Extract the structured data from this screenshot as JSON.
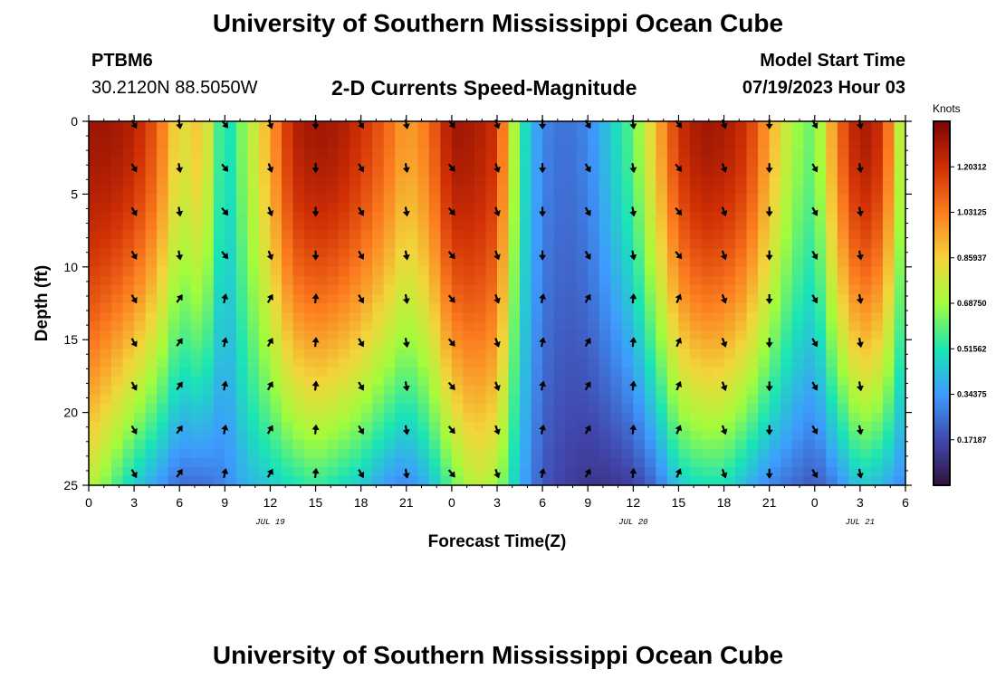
{
  "header": {
    "title": "University of Southern Mississippi Ocean Cube",
    "station_id": "PTBM6",
    "coordinates": "30.2120N  88.5050W",
    "subtitle": "2-D Currents Speed-Magnitude",
    "model_start_label": "Model Start Time",
    "model_start_value": "07/19/2023 Hour 03"
  },
  "footer": {
    "title": "University of Southern Mississippi Ocean Cube"
  },
  "colors": {
    "low": "#30123b",
    "high": "#7a0403",
    "arrow": "#000000"
  },
  "chart_data": {
    "type": "heatmap",
    "title": "2-D Currents Speed-Magnitude",
    "xlabel": "Forecast Time(Z)",
    "ylabel": "Depth (ft)",
    "x_ticks": [
      "0",
      "3",
      "6",
      "9",
      "12",
      "15",
      "18",
      "21",
      "0",
      "3",
      "6",
      "9",
      "12",
      "15",
      "18",
      "21",
      "0",
      "3",
      "6"
    ],
    "x_range_hours": [
      0,
      54
    ],
    "day_labels": [
      {
        "label": "JUL 19",
        "hour": 12
      },
      {
        "label": "JUL 20",
        "hour": 36
      },
      {
        "label": "JUL 21",
        "hour": 51
      }
    ],
    "y_ticks": [
      "0",
      "5",
      "10",
      "15",
      "20",
      "25"
    ],
    "y_range_ft": [
      0,
      25
    ],
    "colorbar": {
      "units": "Knots",
      "range": [
        0.0,
        1.375
      ],
      "tick_values": [
        0.171875,
        0.34375,
        0.515625,
        0.6875,
        0.859375,
        1.03125,
        1.203125
      ],
      "tick_labels": [
        "0.17187",
        "0.34375",
        "0.51562",
        "0.68750",
        "0.85937",
        "1.03125",
        "1.20312"
      ]
    },
    "arrow_rows_depth_ft": [
      0,
      3,
      6,
      9,
      12,
      15,
      18,
      21,
      24
    ],
    "arrow_cols_hour": [
      3,
      6,
      9,
      12,
      15,
      18,
      21,
      24,
      27,
      30,
      33,
      36,
      39,
      42,
      45,
      48,
      51
    ],
    "speed_profile_hours": [
      0,
      1.5,
      3,
      4.5,
      6,
      7.5,
      9,
      10.5,
      12,
      13.5,
      15,
      16.5,
      18,
      19.5,
      21,
      22.5,
      24,
      25.5,
      27,
      28.5,
      30,
      31.5,
      33,
      34.5,
      36,
      37.5,
      39,
      40.5,
      42,
      43.5,
      45,
      46.5,
      48,
      49.5,
      51,
      52.5,
      54
    ],
    "speed_surface_knots": [
      1.3,
      1.3,
      1.25,
      1.1,
      0.8,
      0.9,
      0.45,
      0.7,
      0.95,
      1.25,
      1.3,
      1.28,
      1.2,
      1.1,
      0.95,
      1.05,
      1.3,
      1.28,
      1.2,
      0.55,
      0.3,
      0.25,
      0.3,
      0.45,
      0.6,
      0.9,
      1.2,
      1.3,
      1.28,
      1.2,
      0.95,
      0.7,
      0.6,
      1.05,
      1.3,
      1.2,
      0.6
    ],
    "speed_bottom_knots": [
      0.75,
      0.6,
      0.45,
      0.35,
      0.25,
      0.25,
      0.3,
      0.4,
      0.45,
      0.5,
      0.55,
      0.5,
      0.45,
      0.35,
      0.3,
      0.4,
      0.6,
      0.75,
      0.7,
      0.4,
      0.2,
      0.15,
      0.12,
      0.12,
      0.15,
      0.25,
      0.45,
      0.5,
      0.5,
      0.4,
      0.3,
      0.25,
      0.2,
      0.3,
      0.45,
      0.4,
      0.3
    ]
  }
}
